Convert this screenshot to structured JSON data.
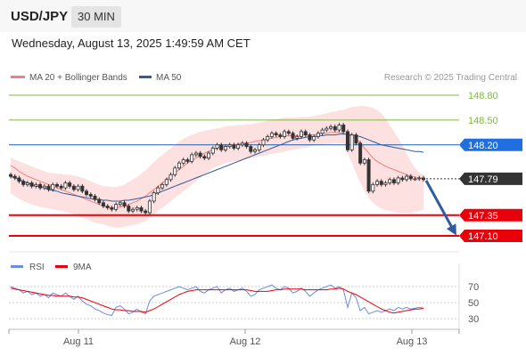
{
  "header": {
    "symbol": "USD/JPY",
    "timeframe": "30 MIN",
    "datetime": "Wednesday, August 13, 2025 1:49:59 AM CET"
  },
  "legend": {
    "ma20_bb": "MA 20 + Bollinger Bands",
    "ma50": "MA 50",
    "credit": "Research © 2025 Trading Central"
  },
  "rsi_legend": {
    "rsi": "RSI",
    "ma9": "9MA"
  },
  "colors": {
    "ma20": "#f08080",
    "ma50": "#2f5c9e",
    "bollinger_fill": "#fde0e0",
    "support": "#e8000b",
    "resistance": "#7cba3c",
    "pivot": "#1f5fb0",
    "pivot_label_bg": "#1f6fe0",
    "last_label_bg": "#333333",
    "candle": "#333333",
    "rsi": "#6c8ed8",
    "rsi_ma": "#e8000b",
    "arrow": "#2f5c9e"
  },
  "chart_data": [
    {
      "type": "candlestick",
      "title": "USD/JPY",
      "ylim": [
        146.9,
        149.0
      ],
      "x_ticks": [
        "Aug 11",
        "Aug 12",
        "Aug 13"
      ],
      "levels": [
        {
          "label": "148.80",
          "value": 148.8,
          "kind": "resistance"
        },
        {
          "label": "148.50",
          "value": 148.5,
          "kind": "resistance"
        },
        {
          "label": "148.20",
          "value": 148.2,
          "kind": "pivot"
        },
        {
          "label": "147.79",
          "value": 147.79,
          "kind": "last"
        },
        {
          "label": "147.35",
          "value": 147.35,
          "kind": "support"
        },
        {
          "label": "147.10",
          "value": 147.1,
          "kind": "support"
        }
      ],
      "forecast_arrow": {
        "from": 147.79,
        "to": 147.12
      },
      "close": [
        147.82,
        147.8,
        147.76,
        147.72,
        147.74,
        147.7,
        147.72,
        147.68,
        147.7,
        147.66,
        147.72,
        147.7,
        147.68,
        147.74,
        147.7,
        147.66,
        147.7,
        147.64,
        147.6,
        147.58,
        147.54,
        147.5,
        147.46,
        147.44,
        147.42,
        147.48,
        147.5,
        147.46,
        147.4,
        147.42,
        147.44,
        147.4,
        147.38,
        147.52,
        147.62,
        147.68,
        147.72,
        147.78,
        147.84,
        147.92,
        147.98,
        148.02,
        148.0,
        148.08,
        148.1,
        148.06,
        148.04,
        148.1,
        148.16,
        148.2,
        148.14,
        148.18,
        148.2,
        148.16,
        148.2,
        148.22,
        148.18,
        148.12,
        148.14,
        148.2,
        148.26,
        148.3,
        148.34,
        148.32,
        148.3,
        148.36,
        148.34,
        148.28,
        148.3,
        148.36,
        148.32,
        148.26,
        148.3,
        148.34,
        148.38,
        148.4,
        148.42,
        148.38,
        148.44,
        148.36,
        148.14,
        148.32,
        148.22,
        147.98,
        148.02,
        147.64,
        147.72,
        147.76,
        147.72,
        147.74,
        147.78,
        147.74,
        147.8,
        147.78,
        147.82,
        147.79,
        147.79,
        147.8,
        147.78
      ],
      "ma20": [
        147.95,
        147.92,
        147.88,
        147.85,
        147.82,
        147.8,
        147.78,
        147.76,
        147.74,
        147.72,
        147.7,
        147.68,
        147.66,
        147.64,
        147.62,
        147.6,
        147.58,
        147.56,
        147.54,
        147.52,
        147.5,
        147.48,
        147.46,
        147.45,
        147.44,
        147.44,
        147.45,
        147.46,
        147.48,
        147.5,
        147.52,
        147.55,
        147.58,
        147.62,
        147.66,
        147.7,
        147.74,
        147.78,
        147.82,
        147.86,
        147.9,
        147.94,
        147.98,
        148.01,
        148.04,
        148.07,
        148.1,
        148.12,
        148.14,
        148.16,
        148.17,
        148.18,
        148.19,
        148.2,
        148.21,
        148.22,
        148.22,
        148.23,
        148.24,
        148.25,
        148.26,
        148.27,
        148.28,
        148.29,
        148.3,
        148.31,
        148.31,
        148.31,
        148.31,
        148.32,
        148.32,
        148.32,
        148.32,
        148.33,
        148.34,
        148.34,
        148.35,
        148.35,
        148.35,
        148.34,
        148.32,
        148.3,
        148.28,
        148.22,
        148.16,
        148.1,
        148.04,
        148.0,
        147.97,
        147.94,
        147.92,
        147.9,
        147.88,
        147.86,
        147.84,
        147.82,
        147.81,
        147.8,
        147.79
      ],
      "ma50": [
        147.82,
        147.8,
        147.78,
        147.76,
        147.74,
        147.72,
        147.7,
        147.69,
        147.68,
        147.66,
        147.65,
        147.64,
        147.62,
        147.61,
        147.6,
        147.59,
        147.58,
        147.57,
        147.56,
        147.55,
        147.54,
        147.54,
        147.53,
        147.53,
        147.52,
        147.52,
        147.52,
        147.53,
        147.53,
        147.54,
        147.55,
        147.56,
        147.57,
        147.58,
        147.6,
        147.62,
        147.64,
        147.66,
        147.68,
        147.7,
        147.72,
        147.74,
        147.76,
        147.78,
        147.8,
        147.82,
        147.84,
        147.86,
        147.88,
        147.9,
        147.92,
        147.94,
        147.96,
        147.98,
        148.0,
        148.02,
        148.04,
        148.06,
        148.08,
        148.1,
        148.12,
        148.14,
        148.16,
        148.18,
        148.2,
        148.22,
        148.24,
        148.26,
        148.27,
        148.28,
        148.29,
        148.3,
        148.3,
        148.31,
        148.31,
        148.32,
        148.32,
        148.32,
        148.33,
        148.33,
        148.33,
        148.32,
        148.31,
        148.3,
        148.28,
        148.26,
        148.24,
        148.22,
        148.2,
        148.19,
        148.18,
        148.17,
        148.16,
        148.15,
        148.14,
        148.13,
        148.12,
        148.12,
        148.11
      ],
      "bb_upper": [
        148.05,
        148.02,
        148.0,
        147.98,
        147.96,
        147.94,
        147.92,
        147.9,
        147.88,
        147.86,
        147.86,
        147.85,
        147.85,
        147.84,
        147.84,
        147.83,
        147.82,
        147.8,
        147.78,
        147.76,
        147.74,
        147.72,
        147.7,
        147.7,
        147.69,
        147.69,
        147.7,
        147.72,
        147.75,
        147.78,
        147.81,
        147.85,
        147.89,
        147.94,
        147.99,
        148.04,
        148.08,
        148.12,
        148.16,
        148.2,
        148.24,
        148.27,
        148.3,
        148.32,
        148.34,
        148.36,
        148.37,
        148.38,
        148.39,
        148.4,
        148.41,
        148.42,
        148.43,
        148.43,
        148.44,
        148.44,
        148.45,
        148.45,
        148.46,
        148.47,
        148.48,
        148.49,
        148.5,
        148.51,
        148.52,
        148.53,
        148.53,
        148.53,
        148.53,
        148.54,
        148.54,
        148.54,
        148.55,
        148.56,
        148.57,
        148.58,
        148.6,
        148.6,
        148.62,
        148.62,
        148.64,
        148.66,
        148.66,
        148.67,
        148.67,
        148.66,
        148.65,
        148.62,
        148.58,
        148.52,
        148.44,
        148.36,
        148.28,
        148.2,
        148.1,
        148.0,
        147.92,
        147.86,
        147.84
      ],
      "bb_lower": [
        147.62,
        147.58,
        147.55,
        147.52,
        147.5,
        147.48,
        147.46,
        147.45,
        147.44,
        147.43,
        147.42,
        147.41,
        147.4,
        147.39,
        147.38,
        147.36,
        147.34,
        147.32,
        147.3,
        147.28,
        147.26,
        147.25,
        147.24,
        147.22,
        147.21,
        147.2,
        147.2,
        147.21,
        147.22,
        147.23,
        147.24,
        147.26,
        147.28,
        147.32,
        147.36,
        147.4,
        147.44,
        147.48,
        147.52,
        147.56,
        147.6,
        147.64,
        147.68,
        147.72,
        147.76,
        147.8,
        147.84,
        147.88,
        147.92,
        147.94,
        147.96,
        147.98,
        147.99,
        148.0,
        148.01,
        148.02,
        148.03,
        148.04,
        148.05,
        148.06,
        148.07,
        148.08,
        148.09,
        148.1,
        148.11,
        148.12,
        148.13,
        148.14,
        148.15,
        148.16,
        148.17,
        148.18,
        148.19,
        148.2,
        148.2,
        148.21,
        148.21,
        148.22,
        148.22,
        148.22,
        148.1,
        147.98,
        147.86,
        147.74,
        147.64,
        147.56,
        147.5,
        147.46,
        147.43,
        147.41,
        147.4,
        147.39,
        147.38,
        147.38,
        147.38,
        147.38,
        147.39,
        147.4,
        147.42
      ]
    },
    {
      "type": "line",
      "title": "RSI",
      "ylim": [
        22,
        78
      ],
      "y_ticks": [
        70,
        50,
        30
      ],
      "series": [
        {
          "name": "RSI",
          "values": [
            70,
            68,
            66,
            62,
            64,
            60,
            62,
            58,
            60,
            56,
            62,
            60,
            58,
            62,
            58,
            54,
            58,
            52,
            48,
            46,
            42,
            40,
            37,
            35,
            34,
            44,
            46,
            42,
            36,
            38,
            42,
            38,
            36,
            52,
            58,
            60,
            62,
            64,
            66,
            68,
            70,
            68,
            66,
            68,
            70,
            64,
            62,
            66,
            68,
            70,
            62,
            66,
            68,
            64,
            66,
            68,
            64,
            58,
            60,
            66,
            68,
            70,
            72,
            68,
            66,
            70,
            68,
            62,
            64,
            68,
            64,
            58,
            62,
            66,
            68,
            70,
            72,
            68,
            70,
            66,
            44,
            62,
            56,
            40,
            44,
            36,
            38,
            40,
            38,
            40,
            42,
            40,
            44,
            42,
            44,
            42,
            43,
            44,
            43
          ]
        },
        {
          "name": "9MA",
          "values": [
            68,
            67,
            66,
            65,
            64,
            63,
            62,
            61,
            60,
            59,
            59,
            58,
            58,
            58,
            58,
            57,
            57,
            56,
            54,
            52,
            50,
            48,
            46,
            44,
            42,
            41,
            41,
            40,
            40,
            39,
            39,
            39,
            38,
            40,
            42,
            45,
            48,
            51,
            54,
            57,
            60,
            62,
            64,
            65,
            66,
            66,
            66,
            66,
            66,
            66,
            66,
            66,
            66,
            66,
            66,
            66,
            66,
            65,
            64,
            64,
            64,
            64,
            65,
            66,
            66,
            67,
            67,
            67,
            67,
            67,
            66,
            66,
            66,
            66,
            66,
            66,
            67,
            67,
            68,
            67,
            64,
            62,
            60,
            57,
            54,
            51,
            48,
            45,
            42,
            40,
            38,
            37,
            38,
            39,
            40,
            41,
            42,
            42,
            43
          ]
        }
      ]
    }
  ]
}
